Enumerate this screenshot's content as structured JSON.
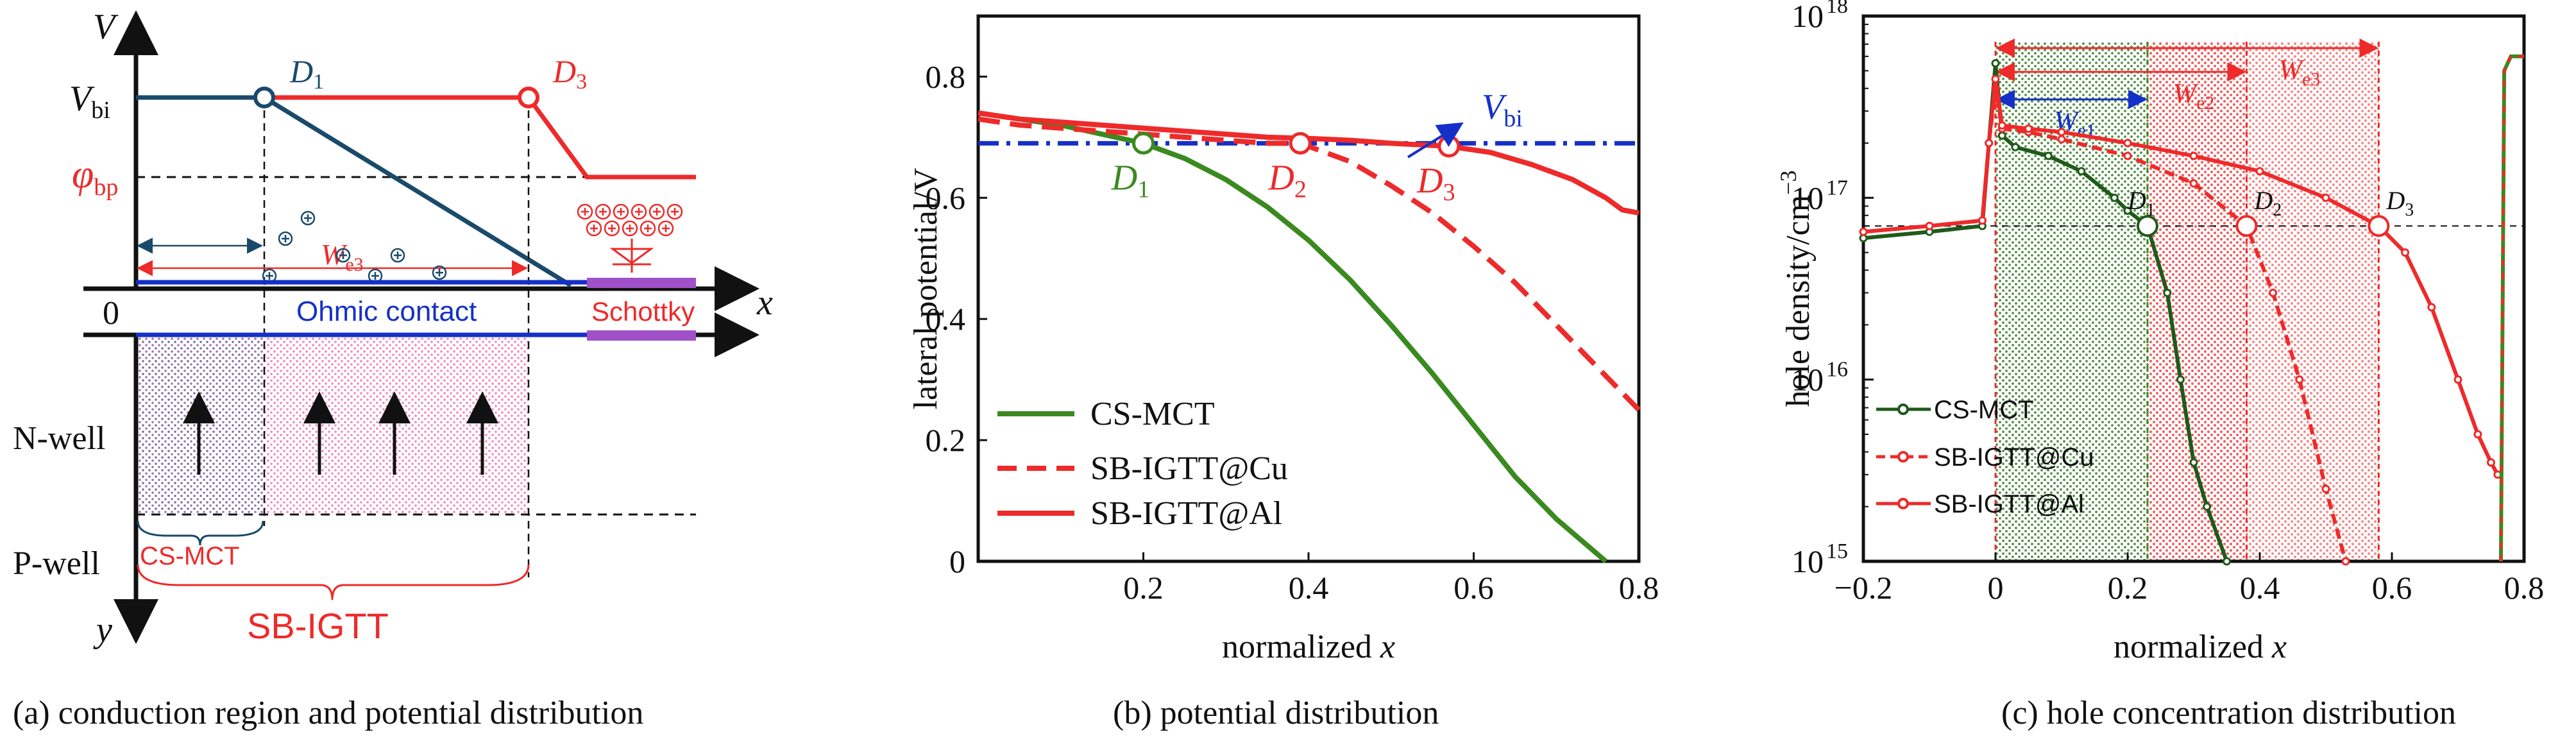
{
  "colors": {
    "green": "#3a8a1f",
    "dark_green": "#1f5a1a",
    "red": "#ee2a2a",
    "blue": "#1530c8",
    "navy": "#1a4a6a",
    "purple_fill": "#5a3a7a",
    "pink_fill": "#e8489a",
    "schottky": "#a050c8"
  },
  "captions": {
    "a": "(a) conduction region and potential distribution",
    "b": "(b) potential distribution",
    "c": "(c) hole concentration distribution"
  },
  "panel_a": {
    "axis_v": "V",
    "axis_x": "x",
    "axis_y": "y",
    "origin": "0",
    "vbi_main": "V",
    "vbi_sub": "bi",
    "phi_main": "φ",
    "phi_sub": "bp",
    "d1_main": "D",
    "d1_sub": "1",
    "d3_main": "D",
    "d3_sub": "3",
    "we3_main": "W",
    "we3_sub": "e3",
    "ohmic": "Ohmic contact",
    "schottky": "Schottky",
    "nwell": "N-well",
    "pwell": "P-well",
    "cs_mct": "CS-MCT",
    "sb_igtt": "SB-IGTT"
  },
  "chart_data": [
    {
      "type": "line",
      "xlabel_main": "normalized ",
      "xlabel_var": "x",
      "ylabel": "lateral potential/V",
      "xlim": [
        0,
        0.8
      ],
      "ylim": [
        0,
        0.9
      ],
      "xticks": [
        "0.2",
        "0.4",
        "0.6",
        "0.8"
      ],
      "yticks": [
        "0",
        "0.2",
        "0.4",
        "0.6",
        "0.8"
      ],
      "reference": {
        "name_main": "V",
        "name_sub": "bi",
        "y": 0.69
      },
      "series": [
        {
          "name": "CS-MCT",
          "style": "solid-green",
          "x": [
            0,
            0.05,
            0.1,
            0.15,
            0.2,
            0.25,
            0.3,
            0.35,
            0.4,
            0.45,
            0.5,
            0.55,
            0.6,
            0.65,
            0.7,
            0.76
          ],
          "y": [
            0.74,
            0.73,
            0.72,
            0.705,
            0.69,
            0.665,
            0.63,
            0.585,
            0.53,
            0.465,
            0.39,
            0.31,
            0.225,
            0.14,
            0.07,
            0.0
          ]
        },
        {
          "name": "SB-IGTT@Cu",
          "style": "dashed-red",
          "x": [
            0,
            0.05,
            0.1,
            0.15,
            0.2,
            0.25,
            0.3,
            0.35,
            0.39,
            0.45,
            0.5,
            0.55,
            0.6,
            0.65,
            0.7,
            0.75,
            0.8
          ],
          "y": [
            0.73,
            0.72,
            0.715,
            0.71,
            0.705,
            0.7,
            0.695,
            0.69,
            0.69,
            0.66,
            0.62,
            0.575,
            0.52,
            0.46,
            0.39,
            0.32,
            0.25
          ]
        },
        {
          "name": "SB-IGTT@Al",
          "style": "solid-red",
          "x": [
            0,
            0.05,
            0.1,
            0.15,
            0.2,
            0.25,
            0.3,
            0.35,
            0.4,
            0.45,
            0.5,
            0.57,
            0.62,
            0.67,
            0.72,
            0.76,
            0.78,
            0.8
          ],
          "y": [
            0.74,
            0.73,
            0.725,
            0.72,
            0.715,
            0.71,
            0.705,
            0.7,
            0.698,
            0.695,
            0.69,
            0.685,
            0.675,
            0.655,
            0.63,
            0.6,
            0.58,
            0.575
          ]
        }
      ],
      "markers": [
        {
          "label_main": "D",
          "label_sub": "1",
          "x": 0.2,
          "y": 0.69,
          "color": "green"
        },
        {
          "label_main": "D",
          "label_sub": "2",
          "x": 0.39,
          "y": 0.69,
          "color": "red"
        },
        {
          "label_main": "D",
          "label_sub": "3",
          "x": 0.57,
          "y": 0.685,
          "color": "red"
        }
      ],
      "legend_position": "bottom-left"
    },
    {
      "type": "line",
      "xlabel_main": "normalized ",
      "xlabel_var": "x",
      "ylabel": "hole density/cm",
      "ylabel_sup": "−3",
      "scale_y": "log",
      "xlim": [
        -0.2,
        0.8
      ],
      "ylim": [
        1000000000000000.0,
        1e+18
      ],
      "xticks": [
        "−0.2",
        "0",
        "0.2",
        "0.4",
        "0.6",
        "0.8"
      ],
      "yticks_base": "10",
      "yticks_exp": [
        "15",
        "16",
        "17",
        "18"
      ],
      "reference_density": 7e+16,
      "series": [
        {
          "name": "CS-MCT",
          "style": "green-marker",
          "x": [
            -0.2,
            -0.1,
            -0.02,
            -0.01,
            0,
            0.01,
            0.03,
            0.08,
            0.13,
            0.18,
            0.2,
            0.23,
            0.26,
            0.28,
            0.3,
            0.32,
            0.35
          ],
          "y": [
            6e+16,
            6.5e+16,
            7e+16,
            2e+17,
            5.5e+17,
            2.2e+17,
            1.9e+17,
            1.7e+17,
            1.4e+17,
            1e+17,
            8.5e+16,
            7e+16,
            3e+16,
            1e+16,
            3500000000000000.0,
            2000000000000000.0,
            1000000000000000.0
          ]
        },
        {
          "name": "SB-IGTT@Cu",
          "style": "red-dashed-marker",
          "x": [
            -0.2,
            -0.1,
            -0.02,
            -0.01,
            0,
            0.01,
            0.05,
            0.1,
            0.2,
            0.3,
            0.38,
            0.42,
            0.46,
            0.5,
            0.53
          ],
          "y": [
            6.5e+16,
            7e+16,
            7.5e+16,
            2e+17,
            4e+17,
            2.4e+17,
            2.3e+17,
            2.1e+17,
            1.7e+17,
            1.2e+17,
            7e+16,
            3e+16,
            1e+16,
            2500000000000000.0,
            1000000000000000.0
          ]
        },
        {
          "name": "SB-IGTT@Al",
          "style": "red-marker",
          "x": [
            -0.2,
            -0.1,
            -0.02,
            -0.01,
            0,
            0.01,
            0.05,
            0.1,
            0.2,
            0.3,
            0.4,
            0.5,
            0.58,
            0.62,
            0.66,
            0.7,
            0.73,
            0.75,
            0.76
          ],
          "y": [
            6.5e+16,
            7e+16,
            7.5e+16,
            2e+17,
            4.5e+17,
            2.5e+17,
            2.4e+17,
            2.3e+17,
            2e+17,
            1.7e+17,
            1.4e+17,
            1e+17,
            7e+16,
            5e+16,
            2.5e+16,
            1e+16,
            5000000000000000.0,
            3500000000000000.0,
            3000000000000000.0
          ]
        }
      ],
      "right_edge_series": [
        {
          "x": [
            0.765,
            0.77,
            0.78,
            0.8
          ],
          "y": [
            1000000000000000.0,
            5e+17,
            6e+17,
            6e+17
          ]
        }
      ],
      "markers": [
        {
          "label_main": "D",
          "label_sub": "1",
          "x": 0.23,
          "y": 7e+16,
          "color": "green"
        },
        {
          "label_main": "D",
          "label_sub": "2",
          "x": 0.38,
          "y": 7e+16,
          "color": "red"
        },
        {
          "label_main": "D",
          "label_sub": "3",
          "x": 0.58,
          "y": 7e+16,
          "color": "red"
        }
      ],
      "widths": [
        {
          "label_main": "W",
          "label_sub": "e1",
          "x_end": 0.23,
          "color": "blue"
        },
        {
          "label_main": "W",
          "label_sub": "e2",
          "x_end": 0.38,
          "color": "red"
        },
        {
          "label_main": "W",
          "label_sub": "e3",
          "x_end": 0.58,
          "color": "red"
        }
      ],
      "legend_position": "bottom-left"
    }
  ]
}
